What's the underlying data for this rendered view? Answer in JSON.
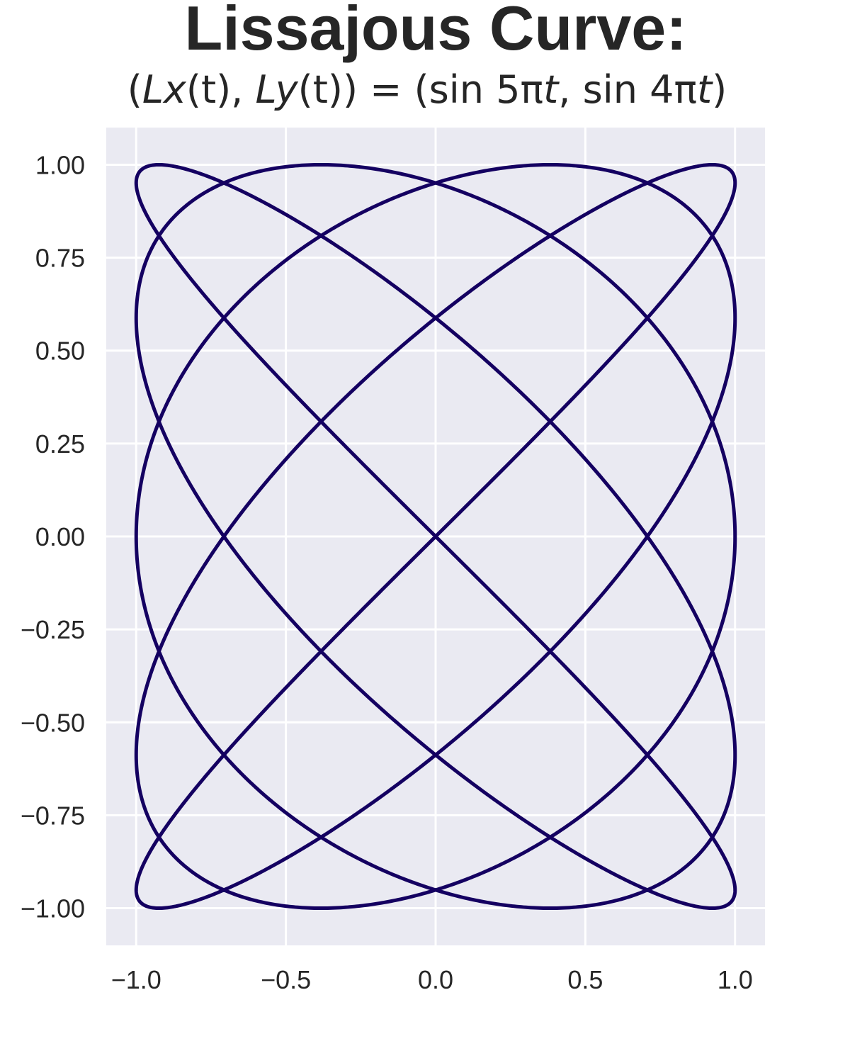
{
  "chart_data": {
    "type": "line",
    "title": "Lissajous Curve:",
    "subtitle": {
      "full": "(Lx(t), Ly(t)) = (sin 5πt, sin 4πt)",
      "open_paren": "(",
      "Lx": "Lx",
      "arg1": "(t), ",
      "Ly": "Ly",
      "arg2": "(t)) = (sin 5π",
      "t1": "t",
      "mid": ", sin 4π",
      "t2": "t",
      "close": ")"
    },
    "xlabel": "",
    "ylabel": "",
    "xlim": [
      -1.1,
      1.1
    ],
    "ylim": [
      -1.1,
      1.1
    ],
    "x_ticks": [
      -1.0,
      -0.5,
      0.0,
      0.5,
      1.0
    ],
    "x_tick_labels": [
      "−1.0",
      "−0.5",
      "0.0",
      "0.5",
      "1.0"
    ],
    "y_ticks": [
      1.0,
      0.75,
      0.5,
      0.25,
      0.0,
      -0.25,
      -0.5,
      -0.75,
      -1.0
    ],
    "y_tick_labels": [
      "1.00",
      "0.75",
      "0.50",
      "0.25",
      "0.00",
      "−0.25",
      "−0.50",
      "−0.75",
      "−1.00"
    ],
    "grid": true,
    "series": [
      {
        "x_function": "sin(5πt)",
        "y_function": "sin(4πt)",
        "t_range": [
          0,
          2
        ],
        "color": "#140061"
      }
    ],
    "colors": {
      "background": "#eaeaf2",
      "grid": "#ffffff",
      "text": "#262626",
      "line": "#140061"
    }
  }
}
